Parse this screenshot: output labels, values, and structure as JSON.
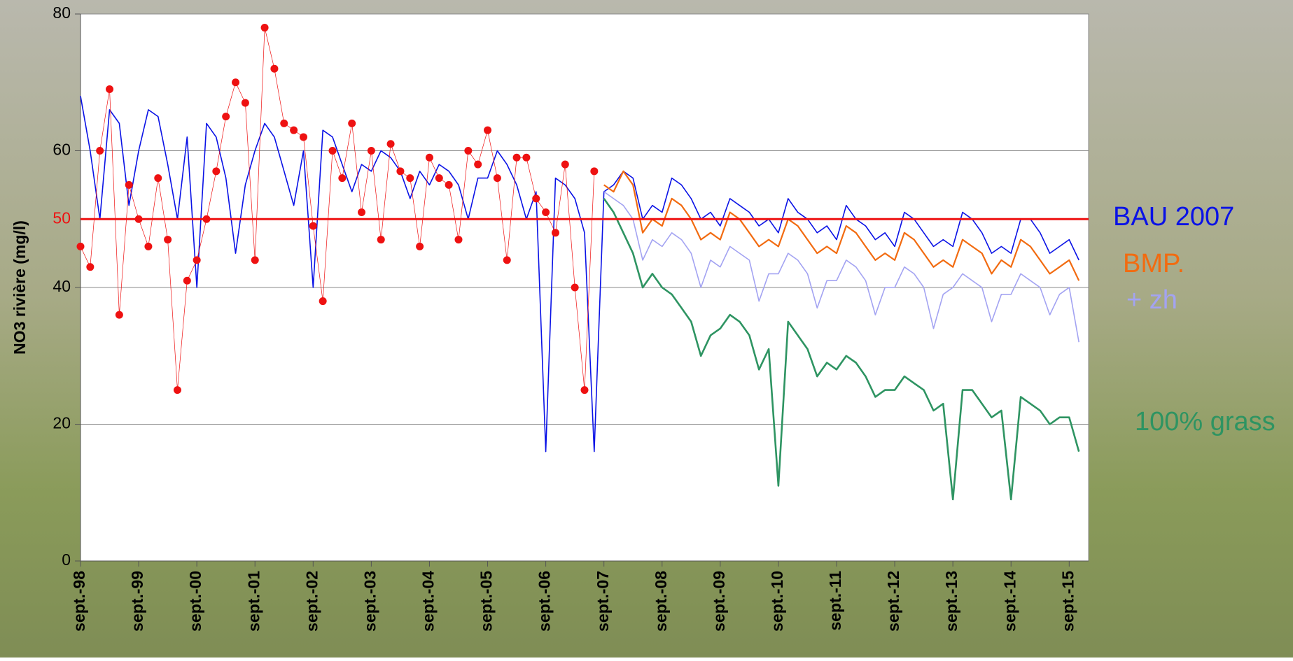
{
  "chart_data": {
    "type": "line",
    "y_label": "NO3 rivière (mg/l)",
    "x": [
      "1998-09",
      "1998-11",
      "1999-01",
      "1999-03",
      "1999-05",
      "1999-07",
      "1999-09",
      "1999-11",
      "2000-01",
      "2000-03",
      "2000-05",
      "2000-07",
      "2000-09",
      "2000-11",
      "2001-01",
      "2001-03",
      "2001-05",
      "2001-07",
      "2001-09",
      "2001-11",
      "2002-01",
      "2002-03",
      "2002-05",
      "2002-07",
      "2002-09",
      "2002-11",
      "2003-01",
      "2003-03",
      "2003-05",
      "2003-07",
      "2003-09",
      "2003-11",
      "2004-01",
      "2004-03",
      "2004-05",
      "2004-07",
      "2004-09",
      "2004-11",
      "2005-01",
      "2005-03",
      "2005-05",
      "2005-07",
      "2005-09",
      "2005-11",
      "2006-01",
      "2006-03",
      "2006-05",
      "2006-07",
      "2006-09",
      "2006-11",
      "2007-01",
      "2007-03",
      "2007-05",
      "2007-07",
      "2007-09",
      "2007-11",
      "2008-01",
      "2008-03",
      "2008-05",
      "2008-07",
      "2008-09",
      "2008-11",
      "2009-01",
      "2009-03",
      "2009-05",
      "2009-07",
      "2009-09",
      "2009-11",
      "2010-01",
      "2010-03",
      "2010-05",
      "2010-07",
      "2010-09",
      "2010-11",
      "2011-01",
      "2011-03",
      "2011-05",
      "2011-07",
      "2011-09",
      "2011-11",
      "2012-01",
      "2012-03",
      "2012-05",
      "2012-07",
      "2012-09",
      "2012-11",
      "2013-01",
      "2013-03",
      "2013-05",
      "2013-07",
      "2013-09",
      "2013-11",
      "2014-01",
      "2014-03",
      "2014-05",
      "2014-07",
      "2014-09",
      "2014-11",
      "2015-01",
      "2015-03",
      "2015-05",
      "2015-07",
      "2015-09",
      "2015-11"
    ],
    "series": [
      {
        "name": "BAU 2007",
        "color": "#0a12e6",
        "width": 1.6,
        "values": [
          68,
          60,
          50,
          66,
          64,
          52,
          60,
          66,
          65,
          58,
          50,
          62,
          40,
          64,
          62,
          56,
          45,
          55,
          60,
          64,
          62,
          57,
          52,
          60,
          40,
          63,
          62,
          58,
          54,
          58,
          57,
          60,
          59,
          57,
          53,
          57,
          55,
          58,
          57,
          55,
          50,
          56,
          56,
          60,
          58,
          55,
          50,
          54,
          16,
          56,
          55,
          53,
          48,
          16,
          54,
          55,
          57,
          56,
          50,
          52,
          51,
          56,
          55,
          53,
          50,
          51,
          49,
          53,
          52,
          51,
          49,
          50,
          48,
          53,
          51,
          50,
          48,
          49,
          47,
          52,
          50,
          49,
          47,
          48,
          46,
          51,
          50,
          48,
          46,
          47,
          46,
          51,
          50,
          48,
          45,
          46,
          45,
          50,
          50,
          48,
          45,
          46,
          47,
          44
        ]
      },
      {
        "name": "BMP.",
        "color": "#f26b10",
        "width": 2.2,
        "values": [
          null,
          null,
          null,
          null,
          null,
          null,
          null,
          null,
          null,
          null,
          null,
          null,
          null,
          null,
          null,
          null,
          null,
          null,
          null,
          null,
          null,
          null,
          null,
          null,
          null,
          null,
          null,
          null,
          null,
          null,
          null,
          null,
          null,
          null,
          null,
          null,
          null,
          null,
          null,
          null,
          null,
          null,
          null,
          null,
          null,
          null,
          null,
          null,
          null,
          null,
          null,
          null,
          null,
          null,
          55,
          54,
          57,
          55,
          48,
          50,
          49,
          53,
          52,
          50,
          47,
          48,
          47,
          51,
          50,
          48,
          46,
          47,
          46,
          50,
          49,
          47,
          45,
          46,
          45,
          49,
          48,
          46,
          44,
          45,
          44,
          48,
          47,
          45,
          43,
          44,
          43,
          47,
          46,
          45,
          42,
          44,
          43,
          47,
          46,
          44,
          42,
          43,
          44,
          41
        ]
      },
      {
        "name": "+ zh",
        "color": "#a3a3f2",
        "width": 1.6,
        "values": [
          null,
          null,
          null,
          null,
          null,
          null,
          null,
          null,
          null,
          null,
          null,
          null,
          null,
          null,
          null,
          null,
          null,
          null,
          null,
          null,
          null,
          null,
          null,
          null,
          null,
          null,
          null,
          null,
          null,
          null,
          null,
          null,
          null,
          null,
          null,
          null,
          null,
          null,
          null,
          null,
          null,
          null,
          null,
          null,
          null,
          null,
          null,
          null,
          null,
          null,
          null,
          null,
          null,
          null,
          54,
          53,
          52,
          50,
          44,
          47,
          46,
          48,
          47,
          45,
          40,
          44,
          43,
          46,
          45,
          44,
          38,
          42,
          42,
          45,
          44,
          42,
          37,
          41,
          41,
          44,
          43,
          41,
          36,
          40,
          40,
          43,
          42,
          40,
          34,
          39,
          40,
          42,
          41,
          40,
          35,
          39,
          39,
          42,
          41,
          40,
          36,
          39,
          40,
          32
        ]
      },
      {
        "name": "100% grass",
        "color": "#2e9462",
        "width": 2.6,
        "values": [
          null,
          null,
          null,
          null,
          null,
          null,
          null,
          null,
          null,
          null,
          null,
          null,
          null,
          null,
          null,
          null,
          null,
          null,
          null,
          null,
          null,
          null,
          null,
          null,
          null,
          null,
          null,
          null,
          null,
          null,
          null,
          null,
          null,
          null,
          null,
          null,
          null,
          null,
          null,
          null,
          null,
          null,
          null,
          null,
          null,
          null,
          null,
          null,
          null,
          null,
          null,
          null,
          null,
          null,
          53,
          51,
          48,
          45,
          40,
          42,
          40,
          39,
          37,
          35,
          30,
          33,
          34,
          36,
          35,
          33,
          28,
          31,
          11,
          35,
          33,
          31,
          27,
          29,
          28,
          30,
          29,
          27,
          24,
          25,
          25,
          27,
          26,
          25,
          22,
          23,
          9,
          25,
          25,
          23,
          21,
          22,
          9,
          24,
          23,
          22,
          20,
          21,
          21,
          16
        ]
      },
      {
        "color": "#ee1111",
        "width": 0.7,
        "markers": true,
        "values": [
          46,
          43,
          60,
          69,
          36,
          55,
          50,
          46,
          56,
          47,
          25,
          41,
          44,
          50,
          57,
          65,
          70,
          67,
          44,
          78,
          72,
          64,
          63,
          62,
          49,
          38,
          60,
          56,
          64,
          51,
          60,
          47,
          61,
          57,
          56,
          46,
          59,
          56,
          55,
          47,
          60,
          58,
          63,
          56,
          44,
          59,
          59,
          53,
          51,
          48,
          58,
          40,
          25,
          57,
          null,
          null,
          null,
          null,
          null,
          null,
          null,
          null,
          null,
          null,
          null,
          null,
          null,
          null,
          null,
          null,
          null,
          null,
          null,
          null,
          null,
          null,
          null,
          null,
          null,
          null,
          null,
          null,
          null,
          null,
          null,
          null,
          null,
          null,
          null,
          null,
          null,
          null,
          null,
          null,
          null,
          null,
          null,
          null,
          null,
          null,
          null,
          null,
          null,
          null
        ]
      }
    ],
    "threshold": 50,
    "threshold_color": "#ee1111",
    "xlim": [
      "1998-09",
      "2016-01"
    ],
    "xticks": [
      {
        "value": "1998-09",
        "label": "sept.-98"
      },
      {
        "value": "1999-09",
        "label": "sept.-99"
      },
      {
        "value": "2000-09",
        "label": "sept.-00"
      },
      {
        "value": "2001-09",
        "label": "sept.-01"
      },
      {
        "value": "2002-09",
        "label": "sept.-02"
      },
      {
        "value": "2003-09",
        "label": "sept.-03"
      },
      {
        "value": "2004-09",
        "label": "sept.-04"
      },
      {
        "value": "2005-09",
        "label": "sept.-05"
      },
      {
        "value": "2006-09",
        "label": "sept.-06"
      },
      {
        "value": "2007-09",
        "label": "sept.-07"
      },
      {
        "value": "2008-09",
        "label": "sept.-08"
      },
      {
        "value": "2009-09",
        "label": "sept.-09"
      },
      {
        "value": "2010-09",
        "label": "sept.-10"
      },
      {
        "value": "2011-09",
        "label": "sept.-11"
      },
      {
        "value": "2012-09",
        "label": "sept.-12"
      },
      {
        "value": "2013-09",
        "label": "sept.-13"
      },
      {
        "value": "2014-09",
        "label": "sept.-14"
      },
      {
        "value": "2015-09",
        "label": "sept.-15"
      }
    ],
    "ylim": [
      0,
      80
    ],
    "yticks": [
      0,
      20,
      40,
      60,
      80
    ],
    "grid": true
  }
}
